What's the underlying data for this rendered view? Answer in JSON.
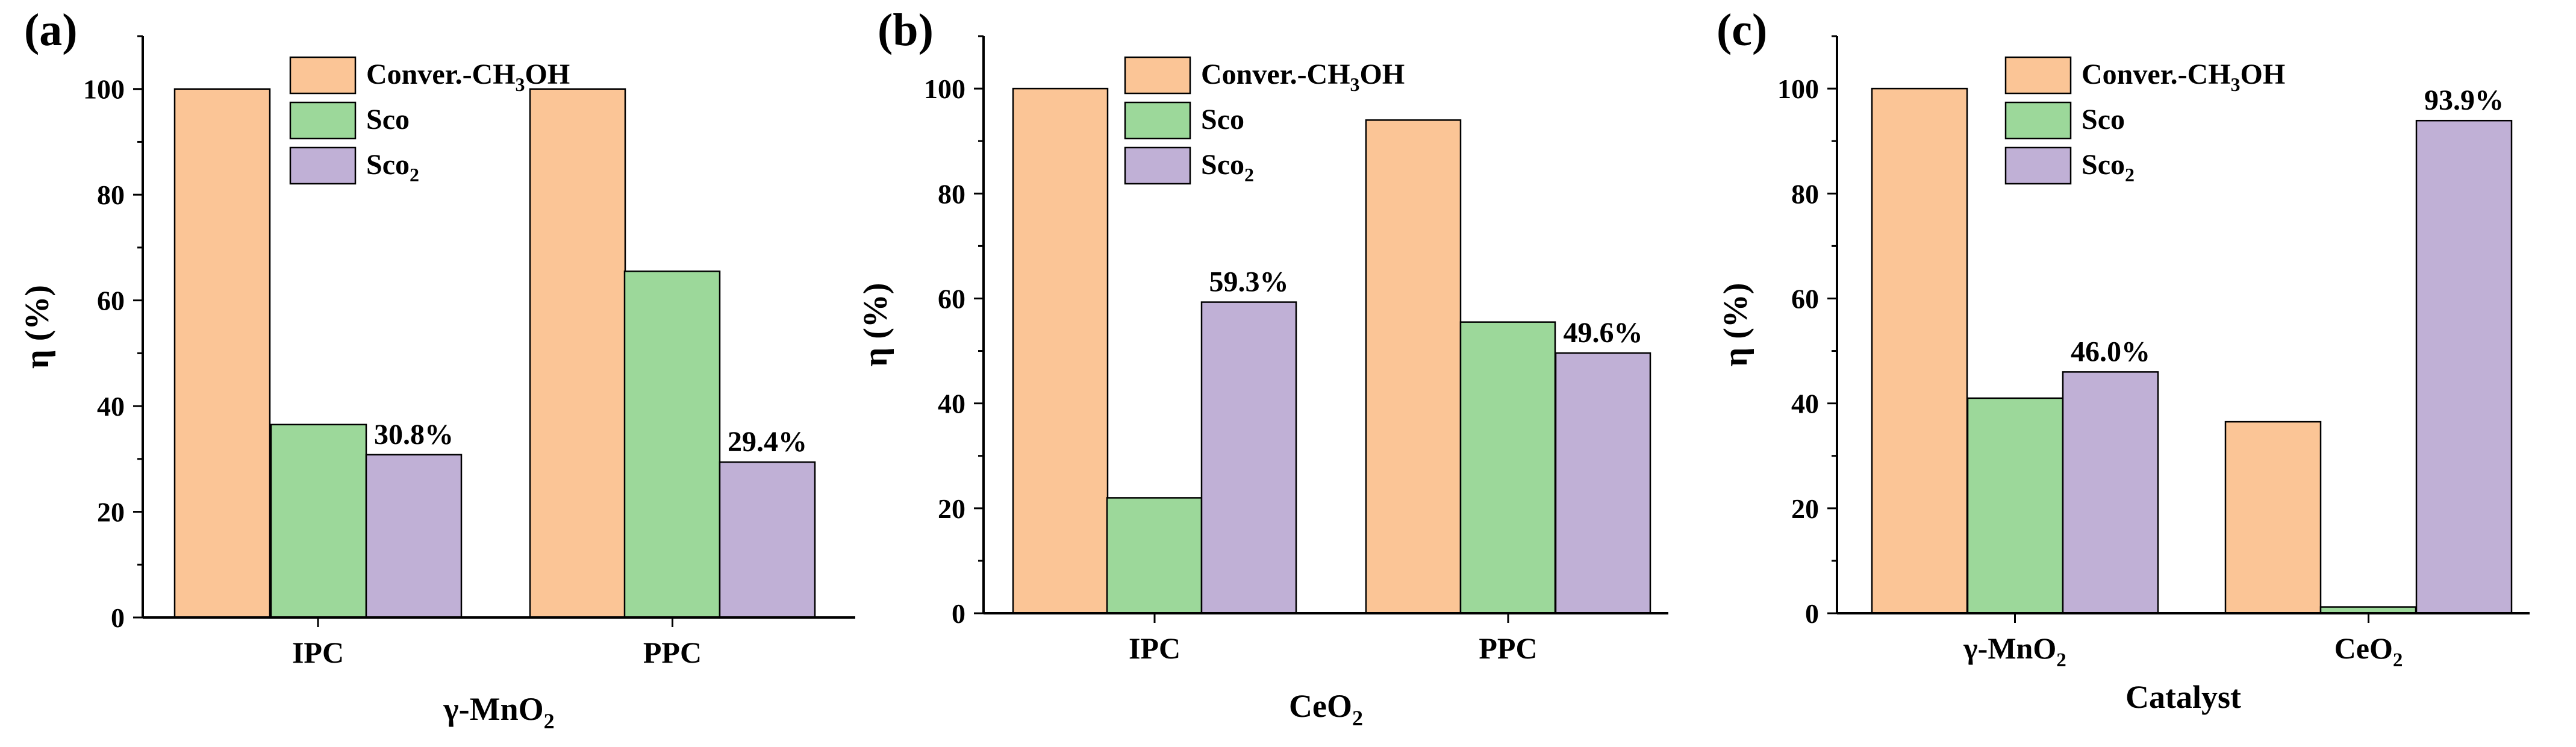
{
  "colors": {
    "Conver.-CH3OH": "#FBC596",
    "Sco": "#9CD89A",
    "Sco2": "#C0B0D6",
    "axis": "#000000"
  },
  "chart_data": [
    {
      "type": "bar",
      "panel_label": "(a)",
      "categories": [
        "IPC",
        "PPC"
      ],
      "xlabel": "γ-MnO",
      "xlabel_sub": "2",
      "ylabel": "η (%)",
      "ylim": [
        0,
        110
      ],
      "yticks": [
        0,
        20,
        40,
        60,
        80,
        100
      ],
      "legend_position": "top-center",
      "series": [
        {
          "key": "Conver.-CH3OH",
          "name": "Conver.-CH",
          "sub": "3",
          "suffix": "OH",
          "values": [
            100,
            100
          ]
        },
        {
          "key": "Sco",
          "name": "Sco",
          "sub": "",
          "suffix": "",
          "values": [
            36.5,
            65.5
          ]
        },
        {
          "key": "Sco2",
          "name": "Sco",
          "sub": "2",
          "suffix": "",
          "values": [
            30.8,
            29.4
          ]
        }
      ],
      "annotations": [
        {
          "category": "IPC",
          "series": "Sco2",
          "text": "30.8%"
        },
        {
          "category": "PPC",
          "series": "Sco2",
          "text": "29.4%"
        }
      ]
    },
    {
      "type": "bar",
      "panel_label": "(b)",
      "categories": [
        "IPC",
        "PPC"
      ],
      "xlabel": "CeO",
      "xlabel_sub": "2",
      "ylabel": "η (%)",
      "ylim": [
        0,
        110
      ],
      "yticks": [
        0,
        20,
        40,
        60,
        80,
        100
      ],
      "legend_position": "top-center",
      "series": [
        {
          "key": "Conver.-CH3OH",
          "name": "Conver.-CH",
          "sub": "3",
          "suffix": "OH",
          "values": [
            100,
            94
          ]
        },
        {
          "key": "Sco",
          "name": "Sco",
          "sub": "",
          "suffix": "",
          "values": [
            22,
            55.5
          ]
        },
        {
          "key": "Sco2",
          "name": "Sco",
          "sub": "2",
          "suffix": "",
          "values": [
            59.3,
            49.6
          ]
        }
      ],
      "annotations": [
        {
          "category": "IPC",
          "series": "Sco2",
          "text": "59.3%"
        },
        {
          "category": "PPC",
          "series": "Sco2",
          "text": "49.6%"
        }
      ]
    },
    {
      "type": "bar",
      "panel_label": "(c)",
      "categories": [
        "γ-MnO2",
        "CeO2"
      ],
      "category_labels": [
        {
          "text": "γ-MnO",
          "sub": "2"
        },
        {
          "text": "CeO",
          "sub": "2"
        }
      ],
      "xlabel": "Catalyst",
      "xlabel_sub": "",
      "ylabel": "η (%)",
      "ylim": [
        0,
        110
      ],
      "yticks": [
        0,
        20,
        40,
        60,
        80,
        100
      ],
      "legend_position": "top-center",
      "series": [
        {
          "key": "Conver.-CH3OH",
          "name": "Conver.-CH",
          "sub": "3",
          "suffix": "OH",
          "values": [
            100,
            36.5
          ]
        },
        {
          "key": "Sco",
          "name": "Sco",
          "sub": "",
          "suffix": "",
          "values": [
            41,
            1.2
          ]
        },
        {
          "key": "Sco2",
          "name": "Sco",
          "sub": "2",
          "suffix": "",
          "values": [
            46.0,
            93.9
          ]
        }
      ],
      "annotations": [
        {
          "category": "γ-MnO2",
          "series": "Sco2",
          "text": "46.0%"
        },
        {
          "category": "CeO2",
          "series": "Sco2",
          "text": "93.9%"
        }
      ]
    }
  ]
}
